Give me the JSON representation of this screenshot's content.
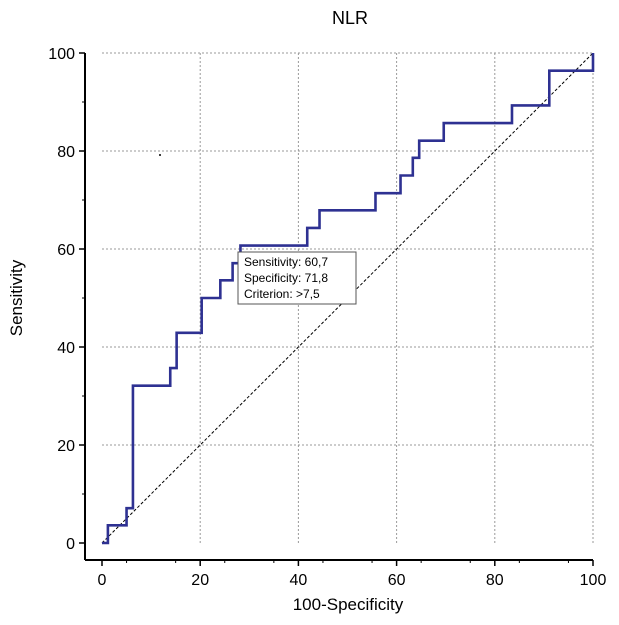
{
  "chart_data": {
    "type": "line",
    "title": "NLR",
    "xlabel": "100-Specificity",
    "ylabel": "Sensitivity",
    "xlim": [
      0,
      100
    ],
    "ylim": [
      0,
      100
    ],
    "x_ticks": [
      0,
      20,
      40,
      60,
      80,
      100
    ],
    "y_ticks": [
      0,
      20,
      40,
      60,
      80,
      100
    ],
    "grid": true,
    "series": [
      {
        "color": "#2e3192",
        "style": "step",
        "points": [
          [
            0,
            0
          ],
          [
            1.2,
            0
          ],
          [
            1.2,
            3.6
          ],
          [
            5,
            3.6
          ],
          [
            5,
            7.1
          ],
          [
            6.3,
            7.1
          ],
          [
            6.3,
            32.1
          ],
          [
            13.9,
            32.1
          ],
          [
            13.9,
            35.7
          ],
          [
            15.2,
            35.7
          ],
          [
            15.2,
            42.9
          ],
          [
            20.3,
            42.9
          ],
          [
            20.3,
            50
          ],
          [
            24.1,
            50
          ],
          [
            24.1,
            53.6
          ],
          [
            26.6,
            53.6
          ],
          [
            26.6,
            57.1
          ],
          [
            28.2,
            57.1
          ],
          [
            28.2,
            60.7
          ],
          [
            41.8,
            60.7
          ],
          [
            41.8,
            64.3
          ],
          [
            44.3,
            64.3
          ],
          [
            44.3,
            67.9
          ],
          [
            55.7,
            67.9
          ],
          [
            55.7,
            71.4
          ],
          [
            60.8,
            71.4
          ],
          [
            60.8,
            75
          ],
          [
            63.3,
            75
          ],
          [
            63.3,
            78.6
          ],
          [
            64.6,
            78.6
          ],
          [
            64.6,
            82.1
          ],
          [
            69.6,
            82.1
          ],
          [
            69.6,
            85.7
          ],
          [
            83.5,
            85.7
          ],
          [
            83.5,
            89.3
          ],
          [
            91.1,
            89.3
          ],
          [
            91.1,
            96.4
          ],
          [
            100,
            96.4
          ],
          [
            100,
            100
          ]
        ]
      },
      {
        "color": "#000000",
        "style": "dashed",
        "points": [
          [
            0,
            0
          ],
          [
            100,
            100
          ]
        ]
      }
    ],
    "annotation": {
      "at": [
        28.2,
        60.7
      ],
      "lines": [
        "Sensitivity: 60,7",
        "Specificity: 71,8",
        "Criterion: >7,5"
      ]
    }
  }
}
